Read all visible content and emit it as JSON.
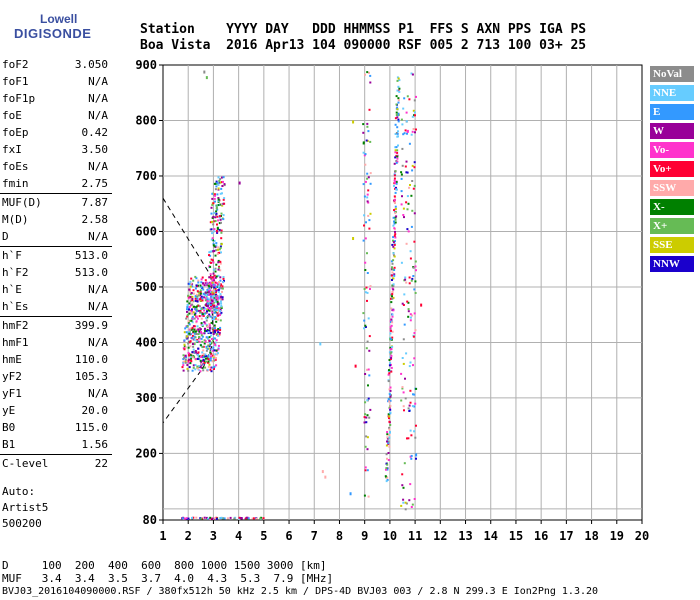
{
  "logo": {
    "line1": "Lowell",
    "line2": "DIGISONDE"
  },
  "header": {
    "line1": "Station    YYYY DAY   DDD HHMMSS P1  FFS S AXN PPS IGA PS",
    "line2": "Boa Vista  2016 Apr13 104 090000 RSF 005 2 713 100 03+ 25"
  },
  "params": [
    {
      "k": "foF2",
      "v": "3.050"
    },
    {
      "k": "foF1",
      "v": "N/A"
    },
    {
      "k": "foF1p",
      "v": "N/A"
    },
    {
      "k": "foE",
      "v": "N/A"
    },
    {
      "k": "foEp",
      "v": "0.42"
    },
    {
      "k": "fxI",
      "v": "3.50"
    },
    {
      "k": "foEs",
      "v": "N/A"
    },
    {
      "k": "fmin",
      "v": "2.75"
    },
    {
      "k": "MUF(D)",
      "v": "7.87"
    },
    {
      "k": "M(D)",
      "v": "2.58"
    },
    {
      "k": "D",
      "v": "N/A"
    },
    {
      "k": "h`F",
      "v": "513.0"
    },
    {
      "k": "h`F2",
      "v": "513.0"
    },
    {
      "k": "h`E",
      "v": "N/A"
    },
    {
      "k": "h`Es",
      "v": "N/A"
    },
    {
      "k": "hmF2",
      "v": "399.9"
    },
    {
      "k": "hmF1",
      "v": "N/A"
    },
    {
      "k": "hmE",
      "v": "110.0"
    },
    {
      "k": "yF2",
      "v": "105.3"
    },
    {
      "k": "yF1",
      "v": "N/A"
    },
    {
      "k": "yE",
      "v": "20.0"
    },
    {
      "k": "B0",
      "v": "115.0"
    },
    {
      "k": "B1",
      "v": "1.56"
    },
    {
      "k": "C-level",
      "v": "22"
    }
  ],
  "auto": {
    "label": "Auto:",
    "name": "Artist5",
    "code": "500200"
  },
  "legend": [
    {
      "label": "NoVal",
      "color": "#8c8c8c"
    },
    {
      "label": "NNE",
      "color": "#66ccff"
    },
    {
      "label": "E",
      "color": "#3399ff"
    },
    {
      "label": "W",
      "color": "#990099"
    },
    {
      "label": "Vo-",
      "color": "#ff33cc"
    },
    {
      "label": "Vo+",
      "color": "#ff0033"
    },
    {
      "label": "SSW",
      "color": "#ffaaaa"
    },
    {
      "label": "X-",
      "color": "#008000"
    },
    {
      "label": "X+",
      "color": "#66bb55"
    },
    {
      "label": "SSE",
      "color": "#cccc00"
    },
    {
      "label": "NNW",
      "color": "#1a00cc"
    }
  ],
  "footer": {
    "d_line": "D     100  200  400  600  800 1000 1500 3000 [km]",
    "muf_line": "MUF   3.4  3.4  3.5  3.7  4.0  4.3  5.3  7.9 [MHz]",
    "file_line": "BVJ03_2016104090000.RSF / 380fx512h 50 kHz 2.5 km / DPS-4D BVJ03 003 / 2.8 N 299.3 E Ion2Png 1.3.20"
  },
  "chart_data": {
    "type": "scatter",
    "xlim": [
      1,
      20
    ],
    "ylim": [
      80,
      900
    ],
    "x_ticks": [
      1,
      2,
      3,
      4,
      5,
      6,
      7,
      8,
      9,
      10,
      11,
      12,
      13,
      14,
      15,
      16,
      17,
      18,
      19,
      20
    ],
    "y_ticks": [
      80,
      100,
      200,
      300,
      400,
      500,
      600,
      700,
      800,
      900
    ],
    "grid": true,
    "dashed_curve": [
      [
        1,
        660
      ],
      [
        2.9,
        520
      ],
      [
        3.0,
        400
      ],
      [
        2.6,
        355
      ],
      [
        1,
        255
      ]
    ],
    "clusters": [
      {
        "name": "F-trace",
        "x": [
          1.7,
          3.3
        ],
        "y": [
          350,
          520
        ],
        "n": 700
      },
      {
        "name": "F-upper",
        "x": [
          2.6,
          3.6
        ],
        "y": [
          450,
          700
        ],
        "n": 220
      },
      {
        "name": "bottom-band",
        "x": [
          1.7,
          5.0
        ],
        "y": [
          80,
          86
        ],
        "n": 160
      },
      {
        "name": "trace-9",
        "x": [
          8.9,
          9.2
        ],
        "y": [
          110,
          900
        ],
        "n": 90
      },
      {
        "name": "trace-10",
        "x": [
          9.8,
          10.3
        ],
        "y": [
          150,
          880
        ],
        "n": 260
      },
      {
        "name": "trace-11",
        "x": [
          10.4,
          11.0
        ],
        "y": [
          100,
          890
        ],
        "n": 160
      }
    ]
  }
}
